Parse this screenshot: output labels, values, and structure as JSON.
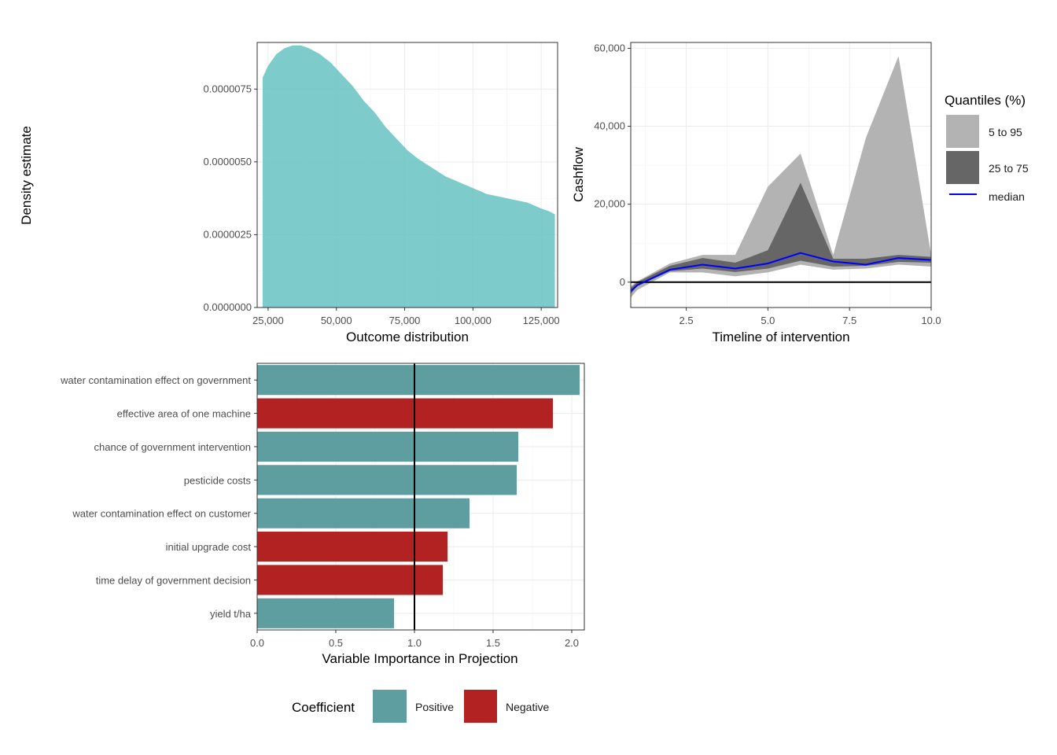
{
  "chart_data": [
    {
      "type": "area",
      "panel": "density",
      "xlabel": "Outcome distribution",
      "ylabel": "Density estimate",
      "xlim": [
        21000,
        131000
      ],
      "ylim": [
        0,
        9.1e-06
      ],
      "x_ticks": [
        {
          "value": 25000,
          "label": "25,000"
        },
        {
          "value": 50000,
          "label": "50,000"
        },
        {
          "value": 75000,
          "label": "75,000"
        },
        {
          "value": 100000,
          "label": "100,000"
        },
        {
          "value": 125000,
          "label": "125,000"
        }
      ],
      "y_ticks": [
        {
          "value": 0,
          "label": "0.0000000"
        },
        {
          "value": 2.5e-06,
          "label": "0.0000025"
        },
        {
          "value": 5e-06,
          "label": "0.0000050"
        },
        {
          "value": 7.5e-06,
          "label": "0.0000075"
        }
      ],
      "x": [
        23000,
        25000,
        28000,
        31000,
        34000,
        37000,
        40000,
        44000,
        48000,
        52000,
        56000,
        60000,
        64000,
        68000,
        72000,
        76000,
        80000,
        85000,
        90000,
        95000,
        100000,
        105000,
        110000,
        115000,
        120000,
        125000,
        128000,
        130000
      ],
      "values": [
        7.9e-06,
        8.3e-06,
        8.7e-06,
        8.9e-06,
        9e-06,
        9e-06,
        8.9e-06,
        8.7e-06,
        8.4e-06,
        8e-06,
        7.6e-06,
        7.1e-06,
        6.7e-06,
        6.2e-06,
        5.8e-06,
        5.4e-06,
        5.1e-06,
        4.8e-06,
        4.5e-06,
        4.3e-06,
        4.1e-06,
        3.9e-06,
        3.8e-06,
        3.7e-06,
        3.6e-06,
        3.4e-06,
        3.3e-06,
        3.2e-06
      ],
      "colors": {
        "fill": "#66c2c2"
      },
      "grid": true
    },
    {
      "type": "area",
      "panel": "cashflow",
      "xlabel": "Timeline of intervention",
      "ylabel": "Cashflow",
      "xlim": [
        0.8,
        10
      ],
      "ylim": [
        -6500,
        61500
      ],
      "x_ticks": [
        {
          "value": 2.5,
          "label": "2.5"
        },
        {
          "value": 5,
          "label": "5.0"
        },
        {
          "value": 7.5,
          "label": "7.5"
        },
        {
          "value": 10,
          "label": "10.0"
        }
      ],
      "y_ticks": [
        {
          "value": 0,
          "label": "0"
        },
        {
          "value": 20000,
          "label": "20,000"
        },
        {
          "value": 40000,
          "label": "40,000"
        },
        {
          "value": 60000,
          "label": "60,000"
        }
      ],
      "x": [
        0.8,
        1,
        2,
        3,
        4,
        5,
        6,
        7,
        8,
        9,
        10
      ],
      "series": [
        {
          "name": "5 to 95",
          "lower": [
            -4000,
            -2000,
            2500,
            2500,
            1500,
            2500,
            4500,
            3200,
            3500,
            4500,
            4000
          ],
          "upper": [
            -1000,
            200,
            4800,
            7000,
            7000,
            24500,
            33000,
            7000,
            37000,
            58000,
            7000
          ]
        },
        {
          "name": "25 to 75",
          "lower": [
            -3000,
            -1000,
            2800,
            3500,
            2600,
            3500,
            5500,
            4000,
            4200,
            5200,
            5000
          ],
          "upper": [
            -1500,
            0,
            4200,
            6200,
            5000,
            8200,
            25500,
            6000,
            6000,
            7000,
            6500
          ]
        },
        {
          "name": "median",
          "values": [
            -2300,
            -800,
            3200,
            4500,
            3500,
            4800,
            7500,
            5300,
            4500,
            6200,
            5700
          ]
        }
      ],
      "legend": {
        "title": "Quantiles (%)",
        "placement": "right"
      },
      "colors": {
        "outer": "#b3b3b3",
        "inner": "#666666",
        "median": "#0000ff",
        "zero_line": "#000000"
      },
      "grid": true
    },
    {
      "type": "bar",
      "panel": "vip",
      "orientation": "horizontal",
      "xlabel": "Variable Importance in Projection",
      "xlim": [
        0,
        2.08
      ],
      "reference_line": 1,
      "x_ticks": [
        {
          "value": 0,
          "label": "0.0"
        },
        {
          "value": 0.5,
          "label": "0.5"
        },
        {
          "value": 1,
          "label": "1.0"
        },
        {
          "value": 1.5,
          "label": "1.5"
        },
        {
          "value": 2,
          "label": "2.0"
        }
      ],
      "categories": [
        "water contamination effect on government",
        "effective area of one machine",
        "chance of government intervention",
        "pesticide costs",
        "water contamination effect on customer",
        "initial upgrade cost",
        "time delay of government decision",
        "yield t/ha"
      ],
      "values": [
        2.05,
        1.88,
        1.66,
        1.65,
        1.35,
        1.21,
        1.18,
        0.87
      ],
      "coefficient": [
        "Positive",
        "Negative",
        "Positive",
        "Positive",
        "Positive",
        "Negative",
        "Negative",
        "Positive"
      ],
      "legend": {
        "title": "Coefficient",
        "entries": [
          "Positive",
          "Negative"
        ],
        "placement": "bottom"
      },
      "colors": {
        "Positive": "#5f9ea0",
        "Negative": "#b22222"
      },
      "grid": true
    }
  ]
}
